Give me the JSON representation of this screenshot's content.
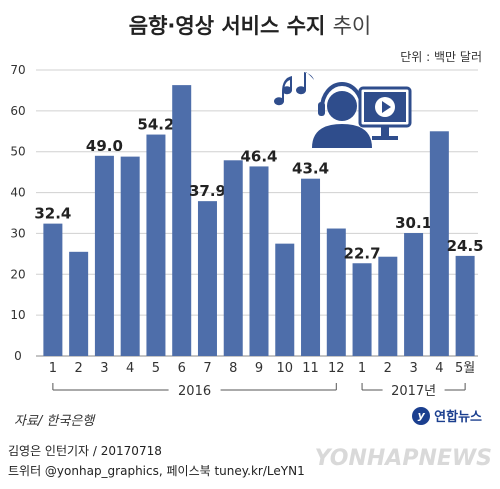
{
  "header": {
    "title_bold": "음향·영상 서비스 수지",
    "title_light": "추이",
    "unit": "단위 : 백만 달러"
  },
  "footer": {
    "source": "자료/ 한국은행",
    "credit_line1": "김영은 인턴기자 / 20170718",
    "credit_line2": "트위터 @yonhap_graphics, 페이스북 tuney.kr/LeYN1",
    "logo_mark": "y",
    "logo_text": "연합뉴스",
    "watermark": "YONHAPNEWS"
  },
  "colors": {
    "bar": "#4e6eaa",
    "grid": "#d0d0d0",
    "axis": "#888888",
    "icon": "#2f4d8c"
  },
  "chart_data": {
    "type": "bar",
    "categories": [
      "1",
      "2",
      "3",
      "4",
      "5",
      "6",
      "7",
      "8",
      "9",
      "10",
      "11",
      "12",
      "1",
      "2",
      "3",
      "4",
      "5월"
    ],
    "values": [
      32.4,
      25.5,
      49.0,
      48.8,
      54.2,
      66.3,
      37.9,
      47.9,
      46.4,
      27.5,
      43.4,
      31.2,
      22.7,
      24.3,
      30.1,
      55.0,
      24.5
    ],
    "value_labels": [
      "32.4",
      null,
      "49.0",
      null,
      "54.2",
      null,
      "37.9",
      null,
      "46.4",
      null,
      "43.4",
      null,
      "22.7",
      null,
      "30.1",
      null,
      "24.5"
    ],
    "groups": [
      {
        "label": "2016",
        "from": 0,
        "to": 11
      },
      {
        "label": "2017년",
        "from": 12,
        "to": 16
      }
    ],
    "yticks": [
      0,
      10,
      20,
      30,
      40,
      50,
      60,
      70
    ],
    "ylim": [
      0,
      70
    ],
    "grid": true
  }
}
